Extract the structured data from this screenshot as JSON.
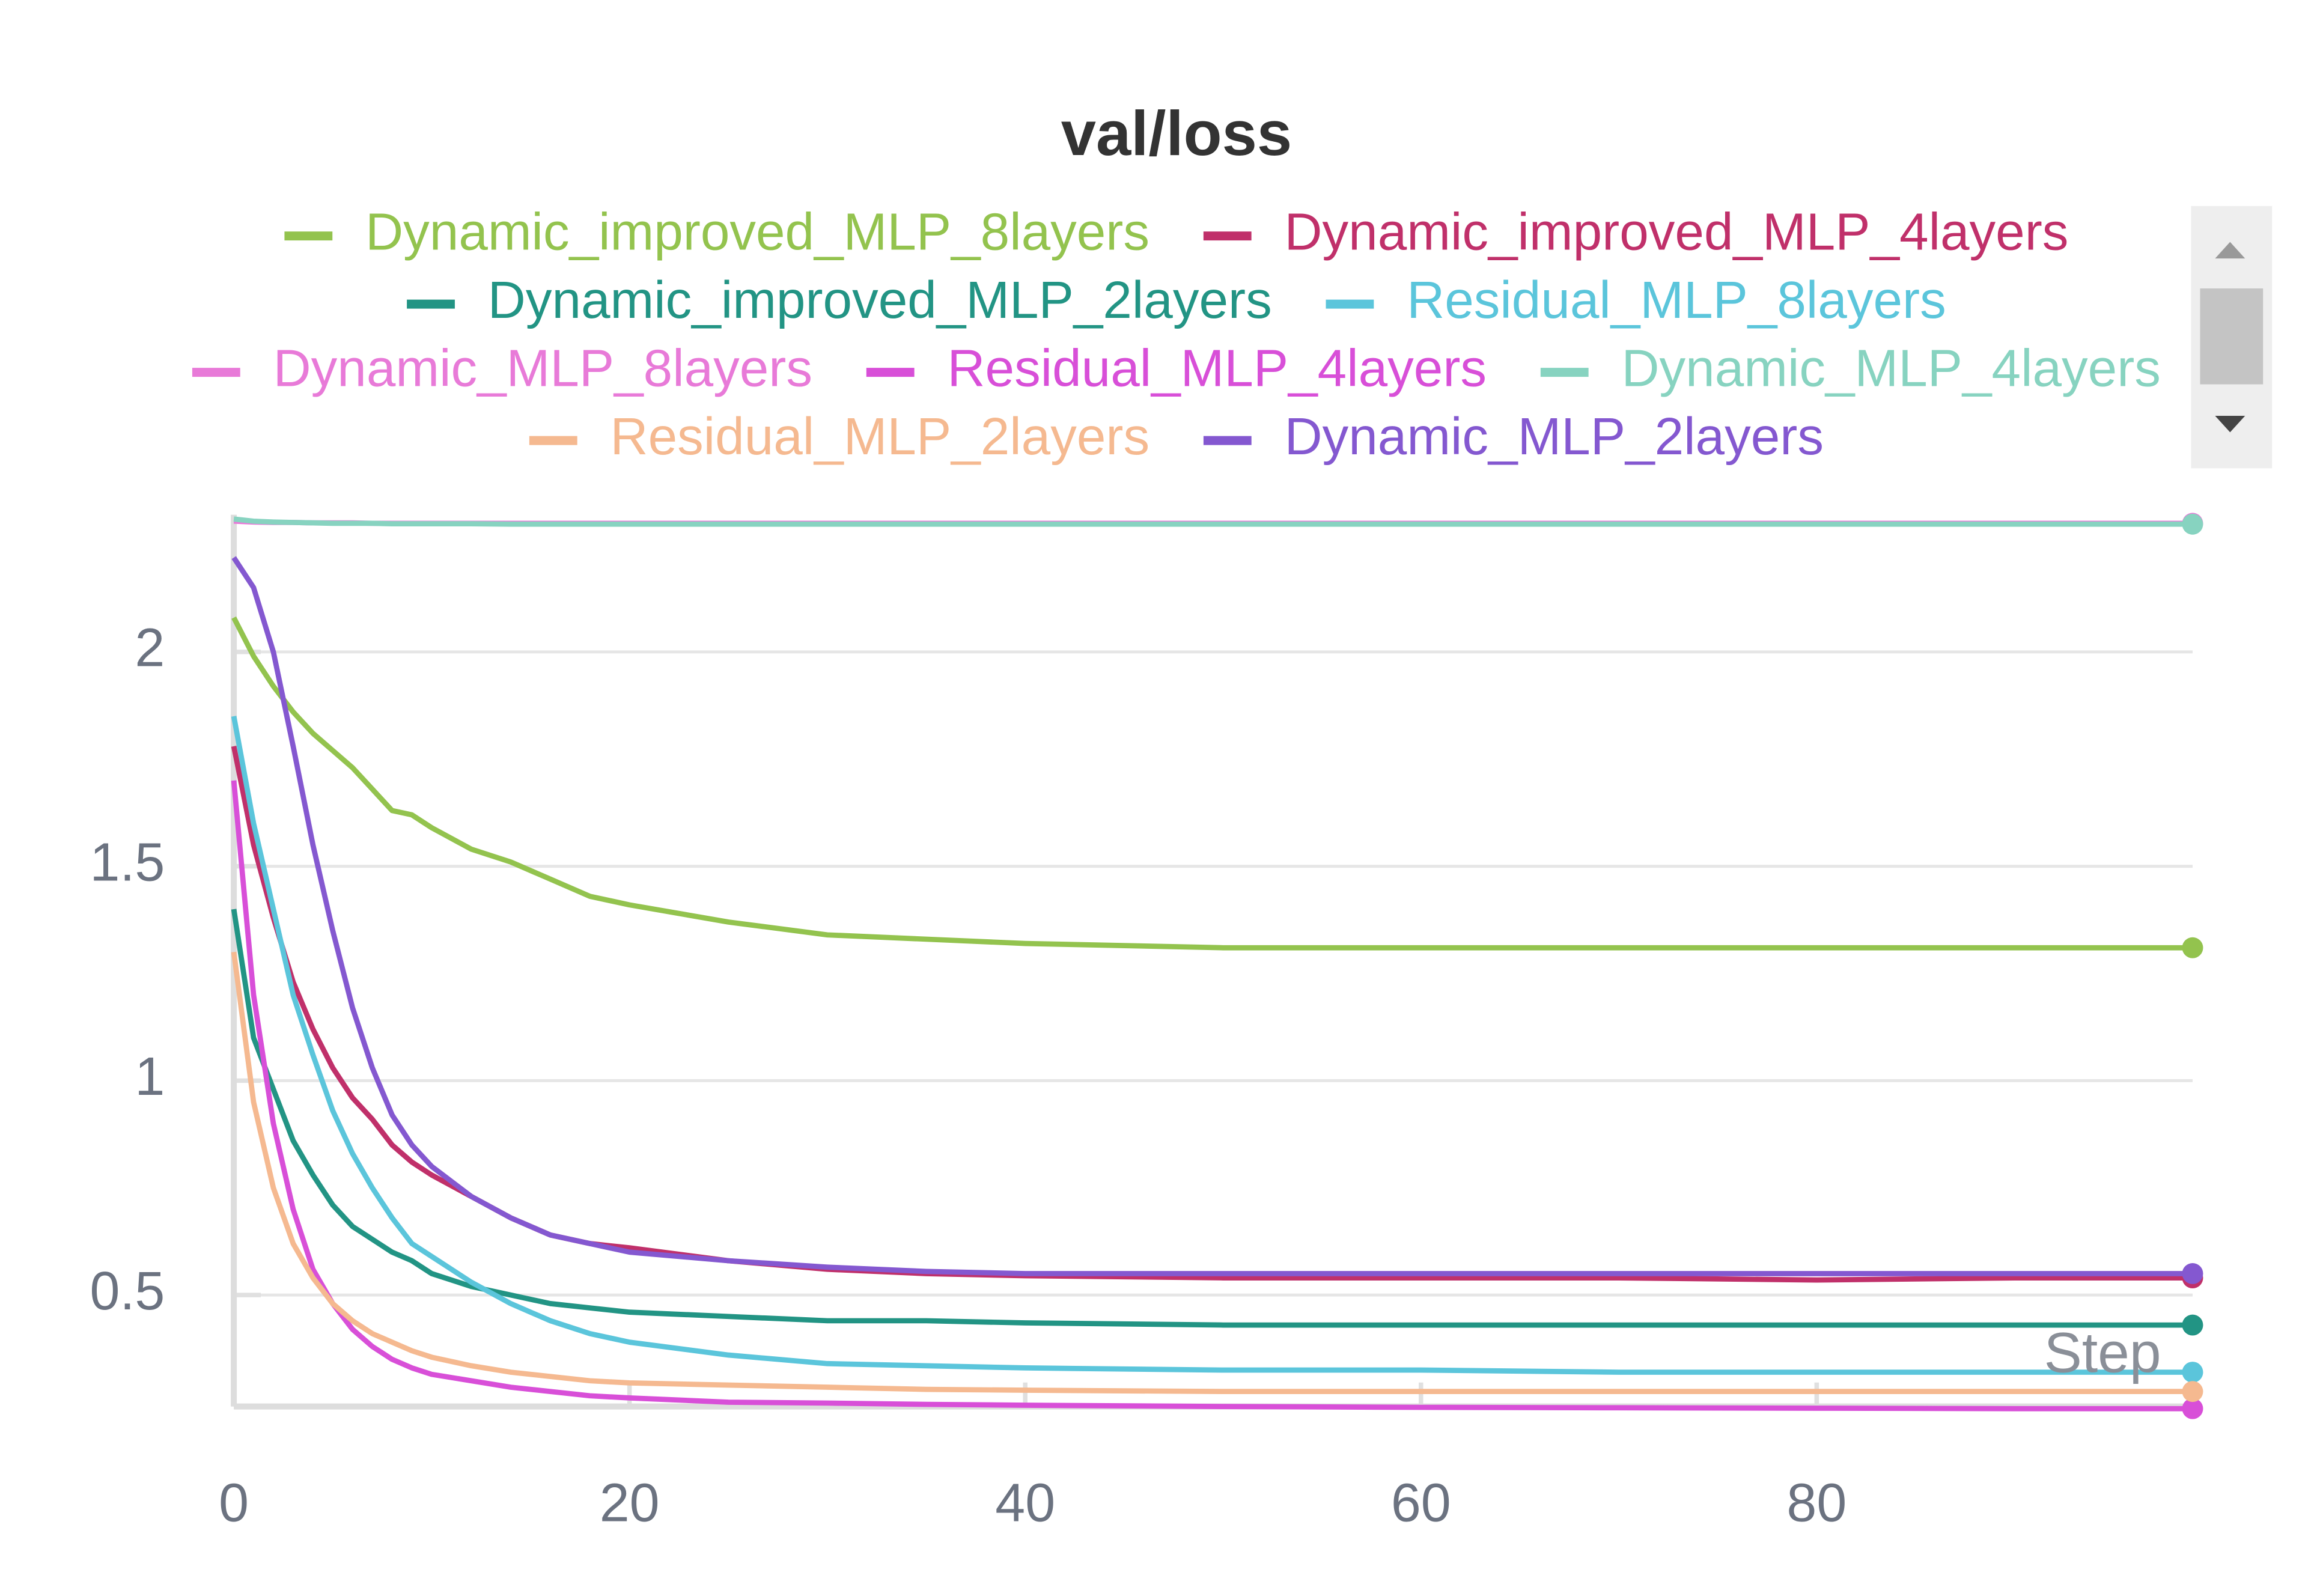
{
  "chart_data": {
    "type": "line",
    "title": "val/loss",
    "x_label": "Step",
    "x": [
      0,
      1,
      2,
      3,
      4,
      5,
      6,
      7,
      8,
      9,
      10,
      12,
      14,
      16,
      18,
      20,
      25,
      30,
      35,
      40,
      50,
      60,
      70,
      80,
      90,
      99
    ],
    "xlim": [
      0,
      99
    ],
    "xticks": [
      0,
      20,
      40,
      60,
      80
    ],
    "ylim": [
      0.24,
      2.32
    ],
    "yticks": [
      0.5,
      1,
      1.5,
      2
    ],
    "grid": true,
    "series": [
      {
        "name": "Dynamic_improved_MLP_8layers",
        "color": "#93c34e",
        "values": [
          2.08,
          1.99,
          1.92,
          1.86,
          1.81,
          1.77,
          1.73,
          1.68,
          1.63,
          1.62,
          1.59,
          1.54,
          1.51,
          1.47,
          1.43,
          1.41,
          1.37,
          1.34,
          1.33,
          1.32,
          1.31,
          1.31,
          1.31,
          1.31,
          1.31,
          1.31
        ]
      },
      {
        "name": "Dynamic_improved_MLP_4layers",
        "color": "#c0306a",
        "values": [
          1.78,
          1.55,
          1.38,
          1.23,
          1.12,
          1.03,
          0.96,
          0.91,
          0.85,
          0.81,
          0.78,
          0.73,
          0.68,
          0.64,
          0.62,
          0.61,
          0.58,
          0.56,
          0.55,
          0.545,
          0.54,
          0.54,
          0.54,
          0.535,
          0.54,
          0.54
        ]
      },
      {
        "name": "Dynamic_improved_MLP_2layers",
        "color": "#229484",
        "values": [
          1.4,
          1.1,
          0.98,
          0.86,
          0.78,
          0.71,
          0.66,
          0.63,
          0.6,
          0.58,
          0.55,
          0.52,
          0.5,
          0.48,
          0.47,
          0.46,
          0.45,
          0.44,
          0.44,
          0.435,
          0.43,
          0.43,
          0.43,
          0.43,
          0.43,
          0.43
        ]
      },
      {
        "name": "Residual_MLP_8layers",
        "color": "#5bc5db",
        "values": [
          1.85,
          1.6,
          1.4,
          1.2,
          1.06,
          0.93,
          0.83,
          0.75,
          0.68,
          0.62,
          0.59,
          0.53,
          0.48,
          0.44,
          0.41,
          0.39,
          0.36,
          0.34,
          0.335,
          0.33,
          0.325,
          0.325,
          0.32,
          0.32,
          0.32,
          0.32
        ]
      },
      {
        "name": "Dynamic_MLP_8layers",
        "color": "#e87ad8",
        "values": [
          2.305,
          2.303,
          2.302,
          2.302,
          2.301,
          2.301,
          2.301,
          2.3,
          2.3,
          2.3,
          2.3,
          2.3,
          2.3,
          2.3,
          2.3,
          2.3,
          2.3,
          2.3,
          2.3,
          2.3,
          2.3,
          2.3,
          2.3,
          2.3,
          2.3,
          2.3
        ]
      },
      {
        "name": "Residual_MLP_4layers",
        "color": "#d84fd8",
        "values": [
          1.7,
          1.2,
          0.9,
          0.7,
          0.56,
          0.48,
          0.42,
          0.38,
          0.35,
          0.33,
          0.315,
          0.3,
          0.285,
          0.275,
          0.265,
          0.26,
          0.25,
          0.248,
          0.245,
          0.243,
          0.24,
          0.238,
          0.237,
          0.236,
          0.235,
          0.235
        ]
      },
      {
        "name": "Dynamic_MLP_4layers",
        "color": "#87d3c0",
        "values": [
          2.31,
          2.305,
          2.303,
          2.302,
          2.301,
          2.3,
          2.3,
          2.3,
          2.299,
          2.299,
          2.299,
          2.299,
          2.298,
          2.298,
          2.298,
          2.298,
          2.298,
          2.298,
          2.298,
          2.298,
          2.298,
          2.298,
          2.298,
          2.298,
          2.298,
          2.298
        ]
      },
      {
        "name": "Residual_MLP_2layers",
        "color": "#f5b990",
        "values": [
          1.3,
          0.95,
          0.75,
          0.62,
          0.54,
          0.48,
          0.44,
          0.41,
          0.39,
          0.37,
          0.355,
          0.335,
          0.32,
          0.31,
          0.3,
          0.295,
          0.29,
          0.285,
          0.28,
          0.278,
          0.275,
          0.275,
          0.275,
          0.275,
          0.275,
          0.275
        ]
      },
      {
        "name": "Dynamic_MLP_2layers",
        "color": "#8458d0",
        "values": [
          2.22,
          2.15,
          2.0,
          1.78,
          1.55,
          1.35,
          1.17,
          1.03,
          0.92,
          0.85,
          0.8,
          0.73,
          0.68,
          0.64,
          0.62,
          0.6,
          0.58,
          0.565,
          0.555,
          0.55,
          0.55,
          0.55,
          0.55,
          0.55,
          0.55,
          0.55
        ]
      }
    ]
  }
}
